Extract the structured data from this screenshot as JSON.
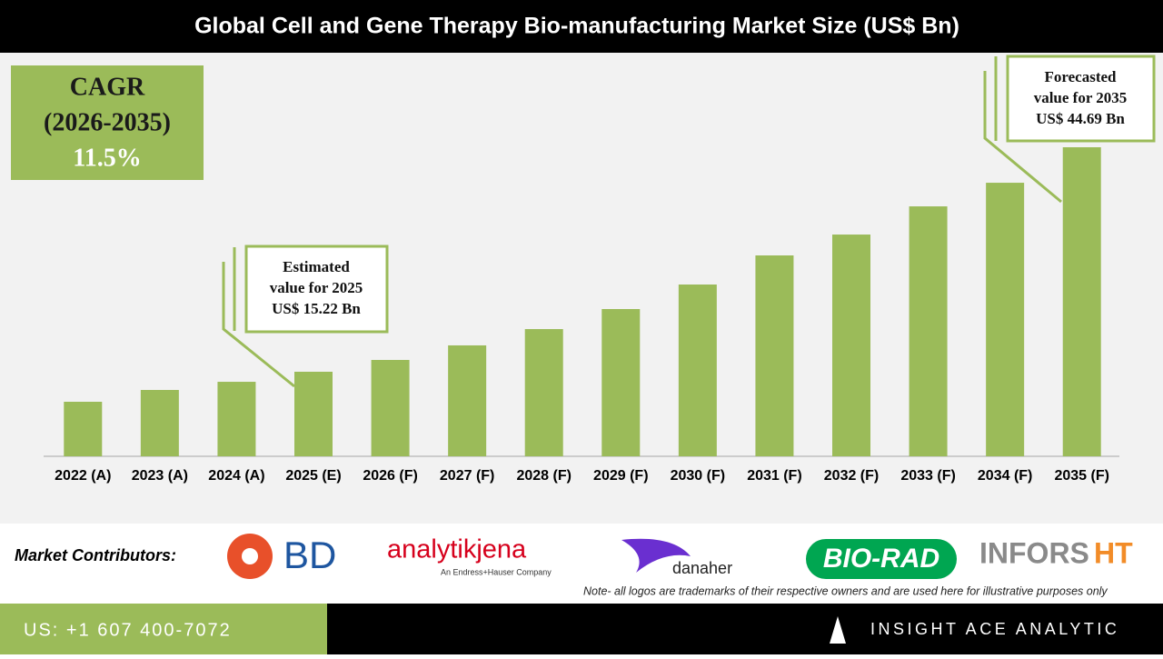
{
  "header": {
    "title": "Global Cell and Gene Therapy Bio-manufacturing Market Size (US$ Bn)"
  },
  "cagr_box": {
    "label": "CAGR",
    "period": "(2026-2035)",
    "value": "11.5%"
  },
  "chart_data": {
    "type": "bar",
    "categories": [
      "2022 (A)",
      "2023 (A)",
      "2024 (A)",
      "2025 (E)",
      "2026 (F)",
      "2027 (F)",
      "2028 (F)",
      "2029 (F)",
      "2030 (F)",
      "2031 (F)",
      "2032 (F)",
      "2033 (F)",
      "2034 (F)",
      "2035 (F)"
    ],
    "values": [
      11.28,
      12.83,
      13.9,
      15.22,
      16.77,
      18.68,
      20.82,
      23.45,
      26.67,
      30.49,
      33.23,
      36.93,
      40.03,
      44.69
    ],
    "color": "#9bbb59",
    "ylim": [
      4.12,
      44.69
    ],
    "annotations": [
      {
        "lines": [
          "Estimated",
          "value for 2025",
          "US$ 15.22 Bn"
        ]
      },
      {
        "lines": [
          "Forecasted",
          "value for 2035",
          "US$ 44.69 Bn"
        ]
      }
    ]
  },
  "contributors": {
    "label": "Market Contributors:",
    "logos": [
      "BD",
      "analytikjena",
      "An Endress+Hauser Company",
      "danaher",
      "BIO-RAD",
      "INFORS",
      "HT"
    ],
    "note": "Note- all logos are trademarks of their respective owners and are used here for illustrative purposes only"
  },
  "footer": {
    "phone": "US: +1 607 400-7072",
    "brand": "INSIGHT ACE ANALYTIC"
  }
}
